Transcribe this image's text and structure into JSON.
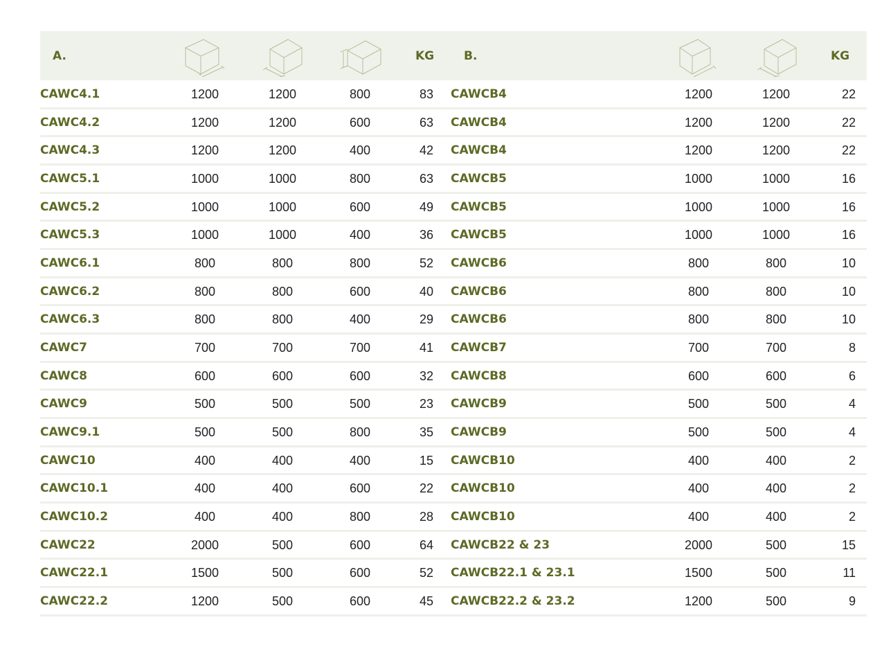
{
  "colors": {
    "accent": "#5c6a26",
    "header_bg": "#eff2eb",
    "divider": "#eef0ea"
  },
  "header": {
    "section_a": "A.",
    "section_b": "B.",
    "kg_a": "KG",
    "kg_b": "KG",
    "icons": [
      "box-dimension-length-icon",
      "box-dimension-width-icon",
      "box-dimension-height-icon"
    ]
  },
  "rows_a": [
    [
      "CAWC4.1",
      "1200",
      "1200",
      "800",
      "83"
    ],
    [
      "CAWC4.2",
      "1200",
      "1200",
      "600",
      "63"
    ],
    [
      "CAWC4.3",
      "1200",
      "1200",
      "400",
      "42"
    ],
    [
      "CAWC5.1",
      "1000",
      "1000",
      "800",
      "63"
    ],
    [
      "CAWC5.2",
      "1000",
      "1000",
      "600",
      "49"
    ],
    [
      "CAWC5.3",
      "1000",
      "1000",
      "400",
      "36"
    ],
    [
      "CAWC6.1",
      "800",
      "800",
      "800",
      "52"
    ],
    [
      "CAWC6.2",
      "800",
      "800",
      "600",
      "40"
    ],
    [
      "CAWC6.3",
      "800",
      "800",
      "400",
      "29"
    ],
    [
      "CAWC7",
      "700",
      "700",
      "700",
      "41"
    ],
    [
      "CAWC8",
      "600",
      "600",
      "600",
      "32"
    ],
    [
      "CAWC9",
      "500",
      "500",
      "500",
      "23"
    ],
    [
      "CAWC9.1",
      "500",
      "500",
      "800",
      "35"
    ],
    [
      "CAWC10",
      "400",
      "400",
      "400",
      "15"
    ],
    [
      "CAWC10.1",
      "400",
      "400",
      "600",
      "22"
    ],
    [
      "CAWC10.2",
      "400",
      "400",
      "800",
      "28"
    ],
    [
      "CAWC22",
      "2000",
      "500",
      "600",
      "64"
    ],
    [
      "CAWC22.1",
      "1500",
      "500",
      "600",
      "52"
    ],
    [
      "CAWC22.2",
      "1200",
      "500",
      "600",
      "45"
    ]
  ],
  "rows_b": [
    [
      "CAWCB4",
      "1200",
      "1200",
      "22"
    ],
    [
      "CAWCB4",
      "1200",
      "1200",
      "22"
    ],
    [
      "CAWCB4",
      "1200",
      "1200",
      "22"
    ],
    [
      "CAWCB5",
      "1000",
      "1000",
      "16"
    ],
    [
      "CAWCB5",
      "1000",
      "1000",
      "16"
    ],
    [
      "CAWCB5",
      "1000",
      "1000",
      "16"
    ],
    [
      "CAWCB6",
      "800",
      "800",
      "10"
    ],
    [
      "CAWCB6",
      "800",
      "800",
      "10"
    ],
    [
      "CAWCB6",
      "800",
      "800",
      "10"
    ],
    [
      "CAWCB7",
      "700",
      "700",
      "8"
    ],
    [
      "CAWCB8",
      "600",
      "600",
      "6"
    ],
    [
      "CAWCB9",
      "500",
      "500",
      "4"
    ],
    [
      "CAWCB9",
      "500",
      "500",
      "4"
    ],
    [
      "CAWCB10",
      "400",
      "400",
      "2"
    ],
    [
      "CAWCB10",
      "400",
      "400",
      "2"
    ],
    [
      "CAWCB10",
      "400",
      "400",
      "2"
    ],
    [
      "CAWCB22 & 23",
      "2000",
      "500",
      "15"
    ],
    [
      "CAWCB22.1 & 23.1",
      "1500",
      "500",
      "11"
    ],
    [
      "CAWCB22.2 & 23.2",
      "1200",
      "500",
      "9"
    ]
  ]
}
